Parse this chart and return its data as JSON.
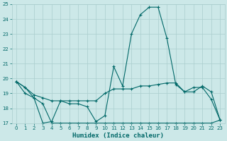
{
  "xlabel": "Humidex (Indice chaleur)",
  "bg_color": "#cce8e8",
  "grid_color": "#aacece",
  "line_color": "#006868",
  "xlim": [
    -0.5,
    23.5
  ],
  "ylim": [
    17,
    25
  ],
  "yticks": [
    17,
    18,
    19,
    20,
    21,
    22,
    23,
    24,
    25
  ],
  "xticks": [
    0,
    1,
    2,
    3,
    4,
    5,
    6,
    7,
    8,
    9,
    10,
    11,
    12,
    13,
    14,
    15,
    16,
    17,
    18,
    19,
    20,
    21,
    22,
    23
  ],
  "series1_x": [
    0,
    1,
    2,
    3,
    4,
    5,
    6,
    7,
    8,
    9,
    10,
    11,
    12,
    13,
    14,
    15,
    16,
    17,
    18,
    19,
    20,
    21,
    22,
    23
  ],
  "series1_y": [
    19.8,
    19.4,
    18.7,
    17.0,
    17.1,
    18.5,
    18.3,
    18.3,
    18.1,
    17.1,
    17.5,
    20.8,
    19.5,
    23.0,
    24.3,
    24.8,
    24.8,
    22.7,
    19.6,
    19.1,
    19.4,
    19.4,
    18.6,
    17.2
  ],
  "series2_x": [
    0,
    1,
    2,
    3,
    4,
    5,
    6,
    7,
    8,
    9,
    10,
    11,
    12,
    13,
    14,
    15,
    16,
    17,
    18,
    19,
    20,
    21,
    22,
    23
  ],
  "series2_y": [
    19.8,
    19.0,
    18.7,
    18.3,
    17.0,
    17.0,
    17.0,
    17.0,
    17.0,
    17.0,
    17.0,
    17.0,
    17.0,
    17.0,
    17.0,
    17.0,
    17.0,
    17.0,
    17.0,
    17.0,
    17.0,
    17.0,
    17.0,
    17.2
  ],
  "series3_x": [
    0,
    1,
    2,
    3,
    4,
    5,
    6,
    7,
    8,
    9,
    10,
    11,
    12,
    13,
    14,
    15,
    16,
    17,
    18,
    19,
    20,
    21,
    22,
    23
  ],
  "series3_y": [
    19.8,
    19.4,
    18.9,
    18.7,
    18.5,
    18.5,
    18.5,
    18.5,
    18.5,
    18.5,
    19.0,
    19.3,
    19.3,
    19.3,
    19.5,
    19.5,
    19.6,
    19.7,
    19.7,
    19.1,
    19.1,
    19.5,
    19.1,
    17.2
  ]
}
